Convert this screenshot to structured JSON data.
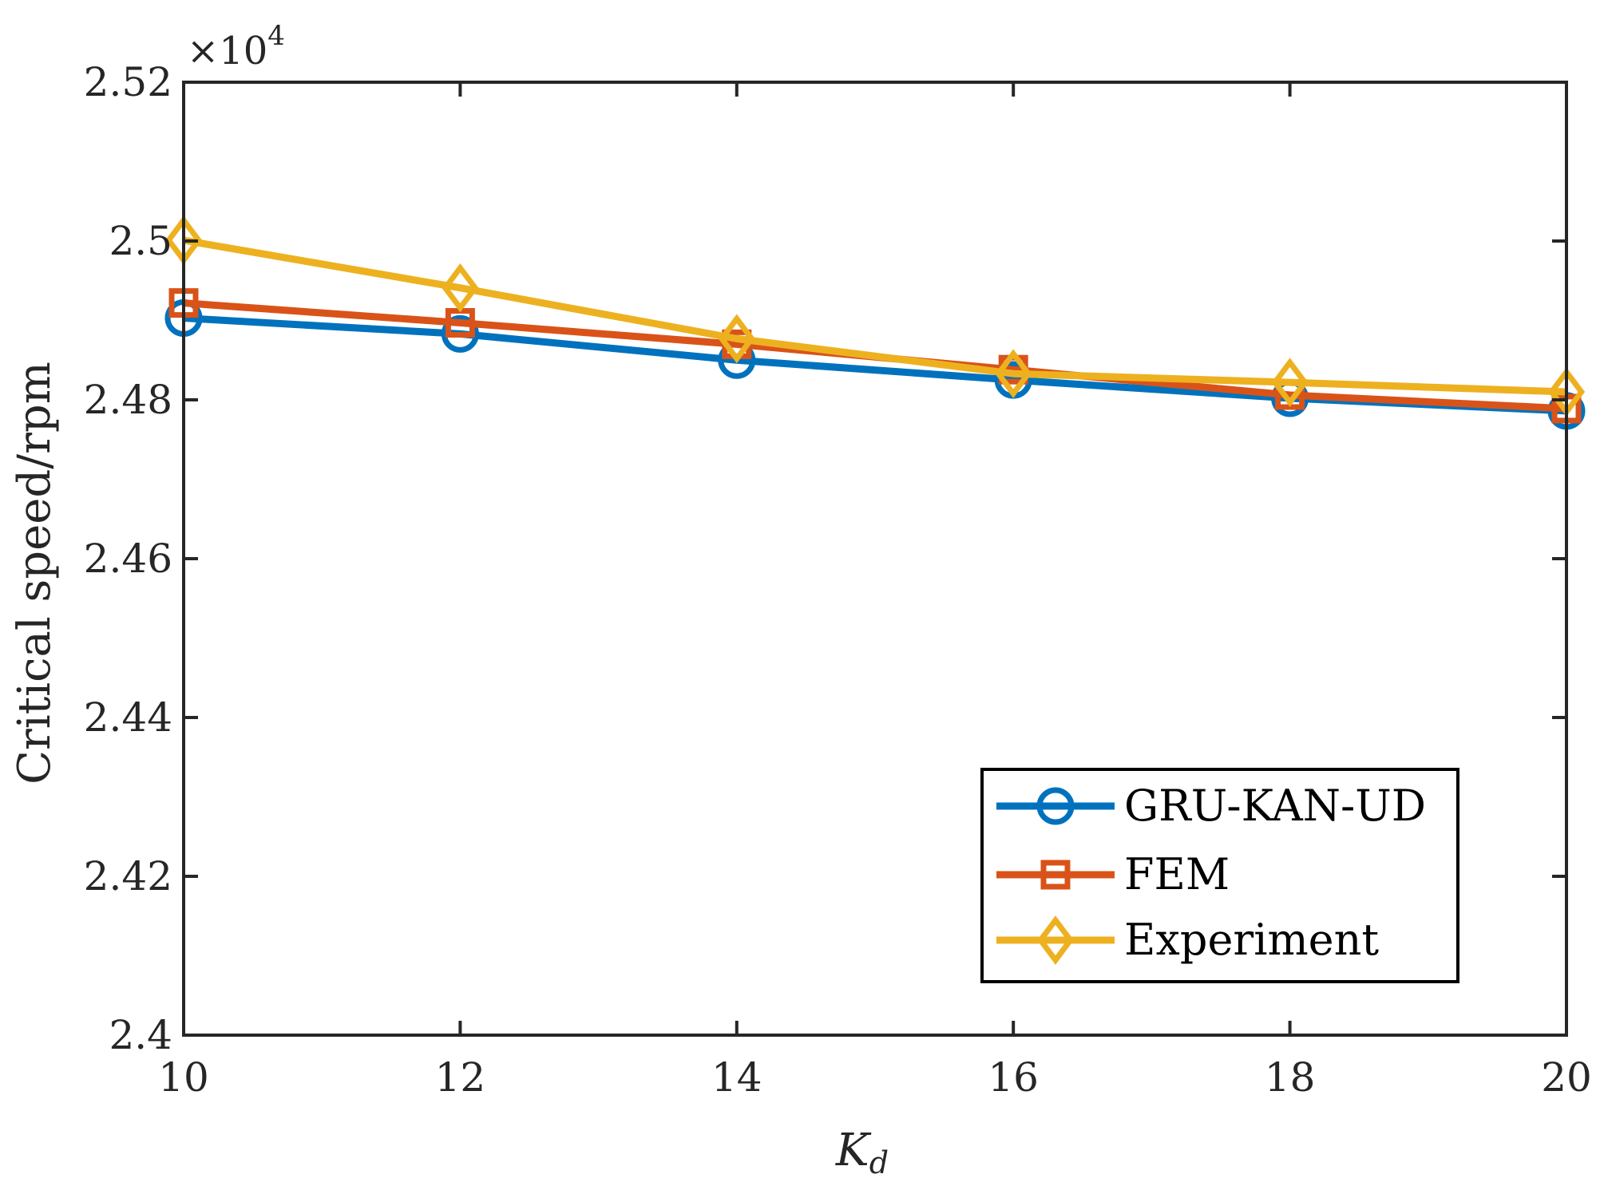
{
  "chart_data": {
    "type": "line",
    "title": "",
    "xlabel_main": "K",
    "xlabel_sub": "d",
    "ylabel": "Critical speed/rpm",
    "y_multiplier_prefix": "×10",
    "y_multiplier_exp": "4",
    "xlim": [
      10,
      20
    ],
    "ylim": [
      2.4,
      2.52
    ],
    "x_ticks": [
      10,
      12,
      14,
      16,
      18,
      20
    ],
    "x_tick_labels": [
      "10",
      "12",
      "14",
      "16",
      "18",
      "20"
    ],
    "y_ticks": [
      2.4,
      2.42,
      2.44,
      2.46,
      2.48,
      2.5,
      2.52
    ],
    "y_tick_labels": [
      "2.4",
      "2.42",
      "2.44",
      "2.46",
      "2.48",
      "2.5",
      "2.52"
    ],
    "grid": false,
    "legend_position": "bottom-right",
    "x": [
      10,
      12,
      14,
      16,
      18,
      20
    ],
    "series": [
      {
        "name": "GRU-KAN-UD",
        "marker": "circle",
        "color": "#0072BD",
        "values": [
          2.4903,
          2.4883,
          2.485,
          2.4825,
          2.4802,
          2.4786
        ]
      },
      {
        "name": "FEM",
        "marker": "square",
        "color": "#D95319",
        "values": [
          2.4922,
          2.4897,
          2.487,
          2.4838,
          2.4806,
          2.4789
        ]
      },
      {
        "name": "Experiment",
        "marker": "diamond",
        "color": "#EDB120",
        "values": [
          2.5001,
          2.4941,
          2.4877,
          2.4833,
          2.4822,
          2.481
        ]
      }
    ]
  }
}
